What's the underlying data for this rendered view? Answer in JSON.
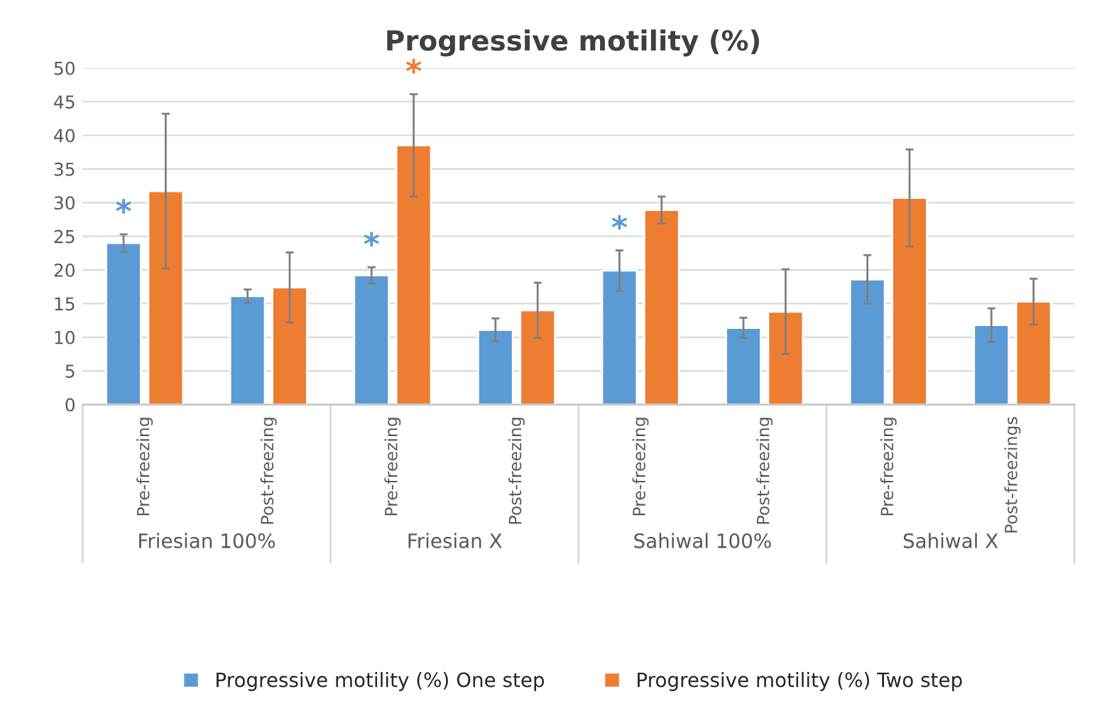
{
  "chart_data": {
    "type": "bar",
    "title": "Progressive motility (%)",
    "categories": [
      "Pre-freezing",
      "Post-freezing",
      "Pre-freezing",
      "Post-freezing",
      "Pre-freezing",
      "Post-freezing",
      "Pre-freezing",
      "Post-freezings"
    ],
    "series": [
      {
        "name": "Progressive motility (%) One step",
        "color": "#5b9bd5",
        "values": [
          24,
          16.1,
          19.2,
          11.1,
          19.9,
          11.4,
          18.6,
          11.8
        ],
        "errors": [
          1.3,
          1,
          1.2,
          1.7,
          3,
          1.5,
          3.6,
          2.5
        ],
        "value_labels": [
          "*",
          null,
          "*",
          null,
          "*",
          null,
          null,
          null
        ]
      },
      {
        "name": "Progressive motility (%) Two step",
        "color": "#ed7d31",
        "values": [
          31.7,
          17.4,
          38.5,
          14,
          28.9,
          13.8,
          30.7,
          15.3
        ],
        "errors": [
          11.5,
          5.2,
          7.6,
          4.1,
          2,
          6.3,
          7.2,
          3.4
        ],
        "value_labels": [
          null,
          null,
          "*",
          null,
          null,
          null,
          null,
          null
        ]
      }
    ],
    "annotations": [
      "Friesian 100%",
      "Friesian X",
      "Sahiwal 100%",
      "Sahiwal X"
    ],
    "ylim": [
      0,
      50
    ],
    "yticks": [
      0,
      5,
      10,
      15,
      20,
      25,
      30,
      35,
      40,
      45,
      50
    ],
    "grid": "y",
    "legend": "bottom"
  }
}
